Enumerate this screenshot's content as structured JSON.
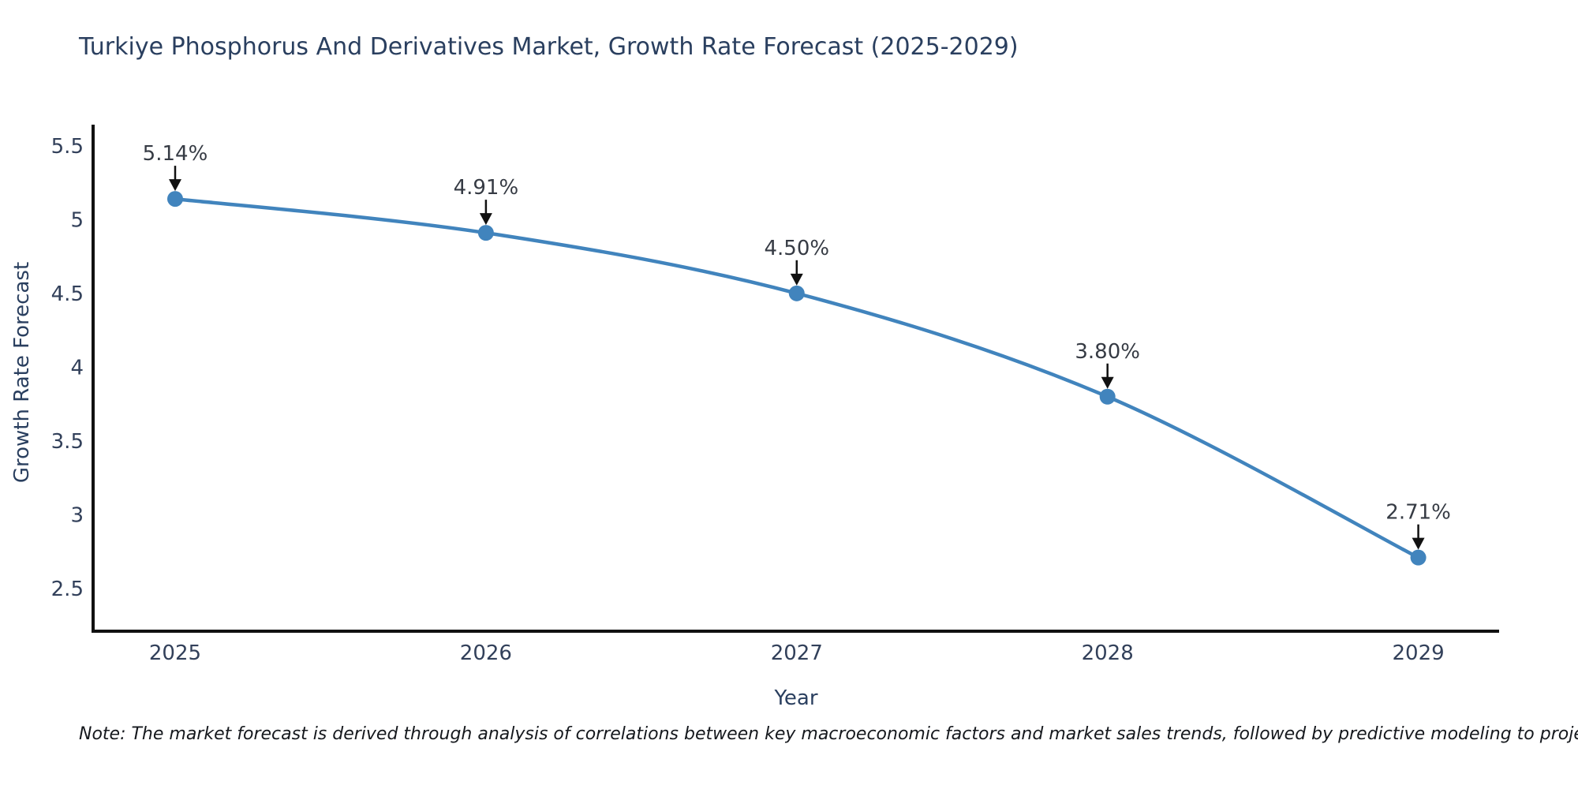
{
  "figure": {
    "note": "Note: The market forecast is derived through analysis of correlations between key macroeconomic factors and market sales trends, followed by predictive modeling to project future sales"
  },
  "chart_data": {
    "type": "line",
    "title": "Turkiye Phosphorus And Derivatives Market, Growth Rate Forecast (2025-2029)",
    "xlabel": "Year",
    "ylabel": "Growth Rate Forecast",
    "categories": [
      "2025",
      "2026",
      "2027",
      "2028",
      "2029"
    ],
    "x": [
      2025,
      2026,
      2027,
      2028,
      2029
    ],
    "values": [
      5.14,
      4.91,
      4.5,
      3.8,
      2.71
    ],
    "point_labels": [
      "5.14%",
      "4.91%",
      "4.50%",
      "3.80%",
      "2.71%"
    ],
    "ytick_labels": [
      "5.5",
      "5",
      "4.5",
      "4",
      "3.5",
      "3",
      "2.5"
    ],
    "ytick_values": [
      5.5,
      5,
      4.5,
      4,
      3.5,
      3,
      2.5
    ],
    "ylim": [
      2.211,
      5.643
    ],
    "xlim": [
      2024.736,
      2029.26
    ],
    "grid": false,
    "legend": false,
    "line_shape": "spline",
    "style": {
      "line_color": "#4184bd",
      "marker_color": "#4184bd",
      "axis_color": "#111111",
      "tick_label_color": "#32405a",
      "title_color": "#2a3f5f",
      "annotation_text_color": "#363b44",
      "arrow_color": "#111111",
      "background": "#ffffff"
    }
  }
}
